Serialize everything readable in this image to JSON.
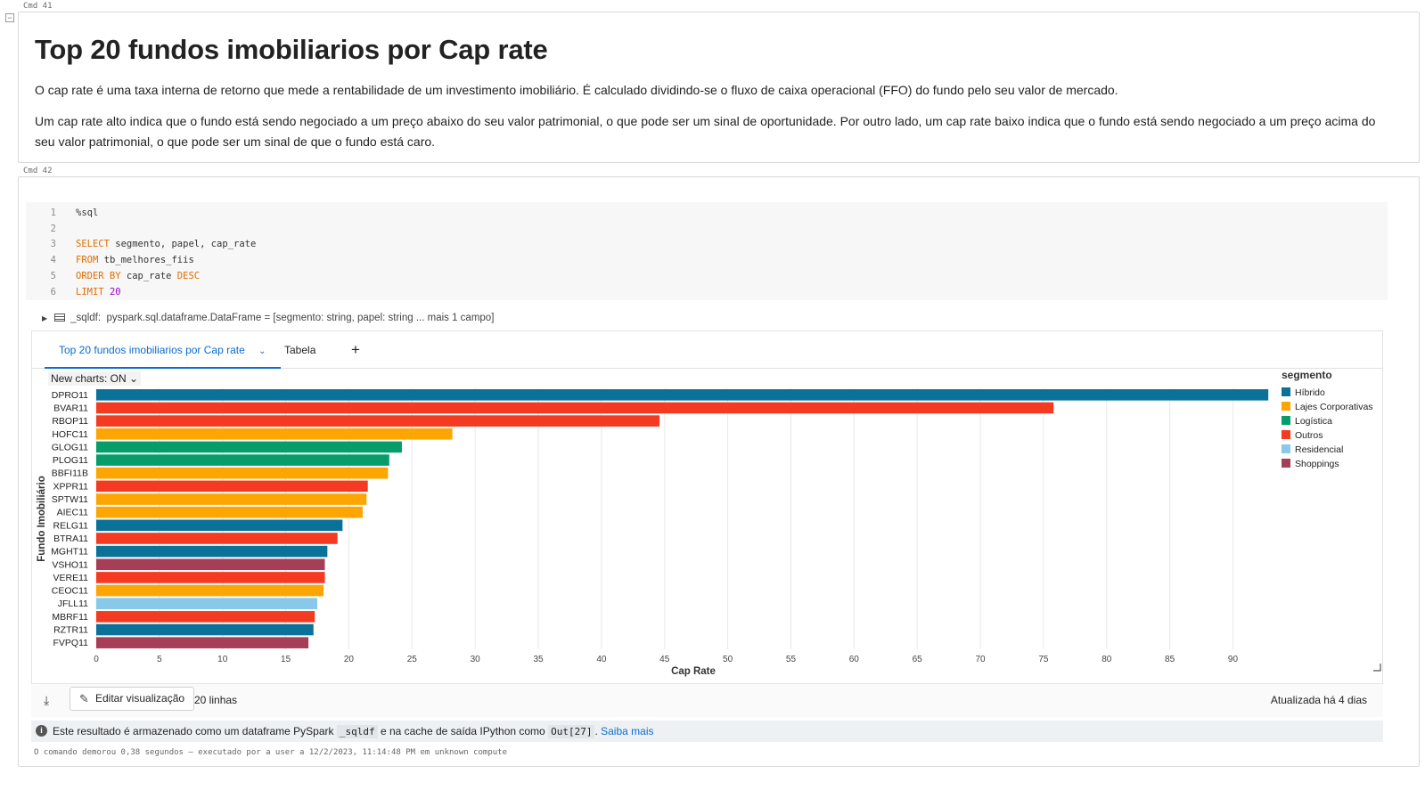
{
  "cmd41": {
    "label": "Cmd 41",
    "collapse_symbol": "−"
  },
  "markdown": {
    "title": "Top 20 fundos imobiliarios por Cap rate",
    "p1": "O cap rate é uma taxa interna de retorno que mede a rentabilidade de um investimento imobiliário. É calculado dividindo-se o fluxo de caixa operacional (FFO) do fundo pelo seu valor de mercado.",
    "p2": "Um cap rate alto indica que o fundo está sendo negociado a um preço abaixo do seu valor patrimonial, o que pode ser um sinal de oportunidade. Por outro lado, um cap rate baixo indica que o fundo está sendo negociado a um preço acima do seu valor patrimonial, o que pode ser um sinal de que o fundo está caro."
  },
  "cmd42": {
    "label": "Cmd 42"
  },
  "code": {
    "lines": [
      {
        "n": "1",
        "parts": [
          [
            "txt",
            "%sql"
          ]
        ]
      },
      {
        "n": "2",
        "parts": []
      },
      {
        "n": "3",
        "parts": [
          [
            "kw",
            "SELECT"
          ],
          [
            "txt",
            " segmento, papel, cap_rate"
          ]
        ]
      },
      {
        "n": "4",
        "parts": [
          [
            "kw",
            "FROM"
          ],
          [
            "txt",
            " tb_melhores_fiis"
          ]
        ]
      },
      {
        "n": "5",
        "parts": [
          [
            "kw",
            "ORDER BY"
          ],
          [
            "txt",
            " cap_rate "
          ],
          [
            "kw",
            "DESC"
          ]
        ]
      },
      {
        "n": "6",
        "parts": [
          [
            "kw",
            "LIMIT"
          ],
          [
            "txt",
            " "
          ],
          [
            "num",
            "20"
          ]
        ]
      }
    ]
  },
  "dataframe": {
    "name": "_sqldf:",
    "desc": "pyspark.sql.dataframe.DataFrame = [segmento: string, papel: string ... mais 1 campo]"
  },
  "tabs": {
    "chart": "Top 20 fundos imobiliarios por Cap rate",
    "table": "Tabela",
    "add": "+"
  },
  "toggle": {
    "label": "New charts: ON",
    "chevron": "⌄"
  },
  "footer": {
    "edit": "Editar visualização",
    "rows": "20 linhas",
    "updated": "Atualizada há 4 dias"
  },
  "info": {
    "before": "Este resultado é armazenado como um dataframe PySpark",
    "code1": "_sqldf",
    "middle": "e na cache de saída IPython como",
    "code2": "Out[27]",
    "after": ".",
    "link": "Saiba mais"
  },
  "status": "O comando demorou 0,38 segundos — executado por a user a 12/2/2023, 11:14:48 PM em unknown compute",
  "chart_data": {
    "type": "bar",
    "orientation": "horizontal",
    "title": "",
    "xlabel": "Cap Rate",
    "ylabel": "Fundo Imobiliário",
    "xlim": [
      0,
      93
    ],
    "x_ticks": [
      0,
      5,
      10,
      15,
      20,
      25,
      30,
      35,
      40,
      45,
      50,
      55,
      60,
      65,
      70,
      75,
      80,
      85,
      90
    ],
    "grid": "vertical",
    "legend": {
      "title": "segmento",
      "placement": "top-right",
      "items": [
        {
          "name": "Híbrido",
          "color": "#0a7198"
        },
        {
          "name": "Lajes Corporativas",
          "color": "#fca503"
        },
        {
          "name": "Logística",
          "color": "#079d6b"
        },
        {
          "name": "Outros",
          "color": "#f53a22"
        },
        {
          "name": "Residencial",
          "color": "#88c8e9"
        },
        {
          "name": "Shoppings",
          "color": "#a73e57"
        }
      ]
    },
    "categories": [
      "DPRO11",
      "BVAR11",
      "RBOP11",
      "HOFC11",
      "GLOG11",
      "PLOG11",
      "BBFI11B",
      "XPPR11",
      "SPTW11",
      "AIEC11",
      "RELG11",
      "BTRA11",
      "MGHT11",
      "VSHO11",
      "VERE11",
      "CEOC11",
      "JFLL11",
      "MBRF11",
      "RZTR11",
      "FVPQ11"
    ],
    "values": [
      92.8,
      75.8,
      44.6,
      28.2,
      24.2,
      23.2,
      23.1,
      21.5,
      21.4,
      21.1,
      19.5,
      19.1,
      18.3,
      18.1,
      18.1,
      18.0,
      17.5,
      17.3,
      17.2,
      16.8
    ],
    "segments": [
      "Híbrido",
      "Outros",
      "Outros",
      "Lajes Corporativas",
      "Logística",
      "Logística",
      "Lajes Corporativas",
      "Outros",
      "Lajes Corporativas",
      "Lajes Corporativas",
      "Híbrido",
      "Outros",
      "Híbrido",
      "Shoppings",
      "Outros",
      "Lajes Corporativas",
      "Residencial",
      "Outros",
      "Híbrido",
      "Shoppings"
    ]
  }
}
